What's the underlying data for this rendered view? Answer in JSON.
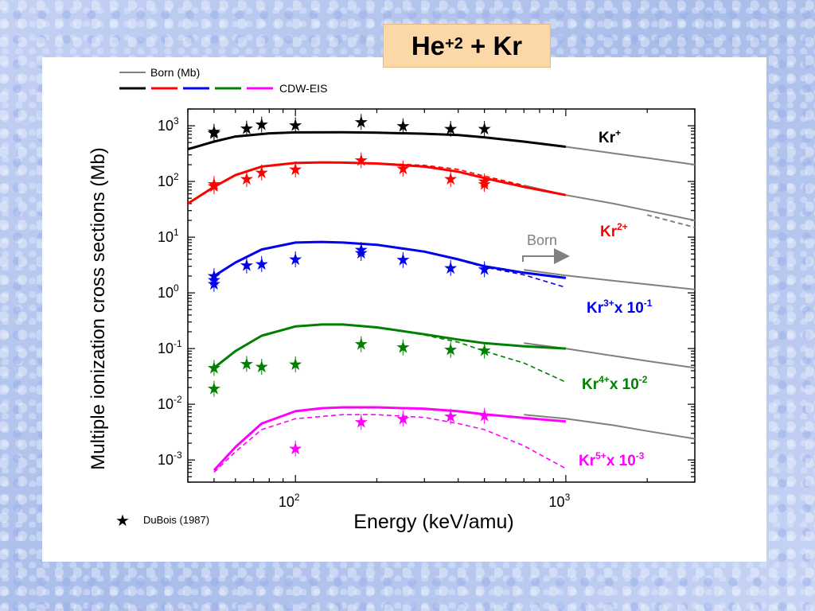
{
  "title": {
    "base": "He",
    "charge": "+2",
    "rest": " + Kr"
  },
  "chart_data": {
    "type": "line",
    "title": "He+2 + Kr",
    "xlabel": "Energy (keV/amu)",
    "ylabel": "Multiple ionization cross sections (Mb)",
    "xscale": "log",
    "yscale": "log",
    "xlim": [
      40,
      3000
    ],
    "ylim": [
      0.0004,
      2000
    ],
    "x_ticks": [
      {
        "value": 100,
        "base": "10",
        "exp": "2"
      },
      {
        "value": 1000,
        "base": "10",
        "exp": "3"
      }
    ],
    "y_ticks": [
      {
        "value": 1000,
        "base": "10",
        "exp": "3"
      },
      {
        "value": 100,
        "base": "10",
        "exp": "2"
      },
      {
        "value": 10,
        "base": "10",
        "exp": "1"
      },
      {
        "value": 1,
        "base": "10",
        "exp": "0"
      },
      {
        "value": 0.1,
        "base": "10",
        "exp": "-1"
      },
      {
        "value": 0.01,
        "base": "10",
        "exp": "-2"
      },
      {
        "value": 0.001,
        "base": "10",
        "exp": "-3"
      }
    ],
    "legend": {
      "placement": "top-left",
      "born_label": "Born (Mb)",
      "cdw_label": "CDW-EIS",
      "dubois_label": "DuBois (1987)"
    },
    "born_annotation": "Born",
    "series": [
      {
        "id": "kr1",
        "color": "#000000",
        "label": {
          "base": "Kr",
          "charge": "+",
          "scale": ""
        },
        "cdw": {
          "x": [
            40,
            50,
            60,
            80,
            100,
            150,
            200,
            300,
            400,
            500,
            700,
            1000
          ],
          "y": [
            380,
            520,
            640,
            730,
            760,
            765,
            750,
            720,
            680,
            620,
            520,
            420
          ]
        },
        "born": {
          "x": [
            700,
            1000,
            1500,
            2000,
            3000
          ],
          "y": [
            520,
            420,
            320,
            265,
            200
          ]
        },
        "data": {
          "x": [
            50,
            50,
            66,
            75,
            100,
            175,
            250,
            375,
            500
          ],
          "y": [
            780,
            730,
            890,
            1050,
            1020,
            1170,
            980,
            880,
            880
          ]
        }
      },
      {
        "id": "kr2",
        "color": "#ff0000",
        "label": {
          "base": "Kr",
          "charge": "2+",
          "scale": ""
        },
        "cdw": {
          "x": [
            40,
            50,
            60,
            75,
            100,
            125,
            150,
            200,
            300,
            400,
            500,
            700,
            1000
          ],
          "y": [
            40,
            80,
            130,
            185,
            215,
            220,
            218,
            210,
            185,
            150,
            115,
            80,
            57
          ]
        },
        "cdw_dashed": {
          "x": [
            150,
            200,
            300,
            400,
            500,
            700
          ],
          "y": [
            218,
            212,
            195,
            165,
            125,
            85
          ]
        },
        "born": {
          "x": [
            700,
            1000,
            1500,
            2000,
            3000
          ],
          "y": [
            85,
            57,
            40,
            30,
            20
          ]
        },
        "born_dashed": {
          "x": [
            2000,
            3000
          ],
          "y": [
            25,
            15
          ]
        },
        "data": {
          "x": [
            50,
            50,
            66,
            75,
            100,
            175,
            250,
            375,
            500,
            500
          ],
          "y": [
            90,
            82,
            110,
            145,
            165,
            240,
            170,
            110,
            100,
            90
          ]
        }
      },
      {
        "id": "kr3",
        "color": "#0000ee",
        "label": {
          "base": "Kr",
          "charge": "3+",
          "scale": "x 10",
          "scale_exp": "-1"
        },
        "cdw": {
          "x": [
            50,
            60,
            75,
            100,
            125,
            150,
            200,
            300,
            400,
            500,
            700,
            1000
          ],
          "y": [
            2.0,
            3.5,
            6.0,
            8.0,
            8.2,
            8.0,
            7.3,
            5.5,
            4.0,
            3.0,
            2.3,
            1.85
          ]
        },
        "cdw_dashed": {
          "x": [
            400,
            500,
            700,
            1000
          ],
          "y": [
            3.9,
            2.9,
            2.1,
            1.25
          ]
        },
        "born": {
          "x": [
            700,
            1000,
            1500,
            2000,
            3000
          ],
          "y": [
            2.6,
            2.05,
            1.65,
            1.42,
            1.15
          ]
        },
        "data": {
          "x": [
            50,
            50,
            50,
            66,
            75,
            100,
            175,
            175,
            250,
            375,
            500
          ],
          "y": [
            2.0,
            1.7,
            1.45,
            3.1,
            3.3,
            4.0,
            5.9,
            5.2,
            3.9,
            2.8,
            2.65
          ]
        }
      },
      {
        "id": "kr4",
        "color": "#008000",
        "label": {
          "base": "Kr",
          "charge": "4+",
          "scale": "x 10",
          "scale_exp": "-2"
        },
        "cdw": {
          "x": [
            50,
            60,
            75,
            100,
            125,
            150,
            200,
            300,
            400,
            500,
            700,
            1000
          ],
          "y": [
            0.045,
            0.09,
            0.17,
            0.25,
            0.27,
            0.27,
            0.24,
            0.18,
            0.145,
            0.125,
            0.11,
            0.1
          ]
        },
        "cdw_dashed": {
          "x": [
            200,
            300,
            400,
            500,
            700,
            1000
          ],
          "y": [
            0.24,
            0.175,
            0.13,
            0.09,
            0.055,
            0.025
          ]
        },
        "born": {
          "x": [
            700,
            1000,
            1500,
            2000,
            3000
          ],
          "y": [
            0.125,
            0.1,
            0.074,
            0.06,
            0.045
          ]
        },
        "data": {
          "x": [
            50,
            50,
            66,
            75,
            100,
            175,
            250,
            375,
            500
          ],
          "y": [
            0.045,
            0.019,
            0.053,
            0.047,
            0.052,
            0.12,
            0.105,
            0.095,
            0.092
          ]
        }
      },
      {
        "id": "kr5",
        "color": "#ff00ff",
        "label": {
          "base": "Kr",
          "charge": "5+",
          "scale": "x 10",
          "scale_exp": "-3"
        },
        "cdw": {
          "x": [
            50,
            60,
            75,
            100,
            125,
            150,
            200,
            300,
            400,
            500,
            700,
            1000
          ],
          "y": [
            0.00065,
            0.0017,
            0.0045,
            0.0075,
            0.0085,
            0.0088,
            0.0088,
            0.0083,
            0.0075,
            0.0066,
            0.0057,
            0.0049
          ]
        },
        "cdw_dashed": {
          "x": [
            50,
            60,
            75,
            100,
            150,
            200,
            300,
            400,
            500,
            700,
            1000
          ],
          "y": [
            0.0006,
            0.0014,
            0.0035,
            0.0055,
            0.0065,
            0.0065,
            0.0058,
            0.0045,
            0.0035,
            0.0018,
            0.0007
          ]
        },
        "born": {
          "x": [
            700,
            1000,
            1500,
            2000,
            3000
          ],
          "y": [
            0.0065,
            0.0055,
            0.0042,
            0.0033,
            0.0024
          ]
        },
        "data": {
          "x": [
            100,
            175,
            250,
            375,
            500
          ],
          "y": [
            0.0016,
            0.0048,
            0.0055,
            0.006,
            0.0062
          ]
        }
      }
    ]
  }
}
